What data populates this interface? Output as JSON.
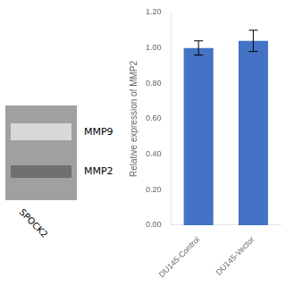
{
  "chart_data": {
    "type": "bar",
    "categories": [
      "DU145-Control",
      "DU145-Vector"
    ],
    "values": [
      1.0,
      1.04
    ],
    "errors": [
      0.04,
      0.06
    ],
    "color": "#4472C4",
    "ylabel": "Relative expression of MMP2",
    "ylim": [
      0,
      1.2
    ],
    "yticks": [
      {
        "value": 0.0,
        "label": "0.00"
      },
      {
        "value": 0.2,
        "label": "0.20"
      },
      {
        "value": 0.4,
        "label": "0.40"
      },
      {
        "value": 0.6,
        "label": "0.60"
      },
      {
        "value": 0.8,
        "label": "0.80"
      },
      {
        "value": 1.0,
        "label": "1.00"
      },
      {
        "value": 1.2,
        "label": "1.20"
      }
    ],
    "annotations": [
      "MMP9",
      "MMP2",
      "SPOCK2"
    ],
    "grid": false,
    "legend": false
  }
}
